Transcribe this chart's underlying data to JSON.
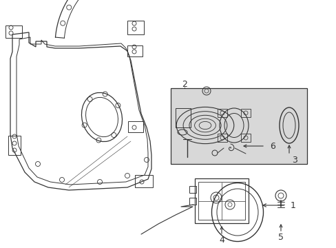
{
  "bg_color": "#ffffff",
  "line_color": "#333333",
  "box_fill": "#e0e0e0",
  "figsize": [
    4.89,
    3.6
  ],
  "dpi": 100,
  "label_fontsize": 8,
  "label_color": "#000000"
}
